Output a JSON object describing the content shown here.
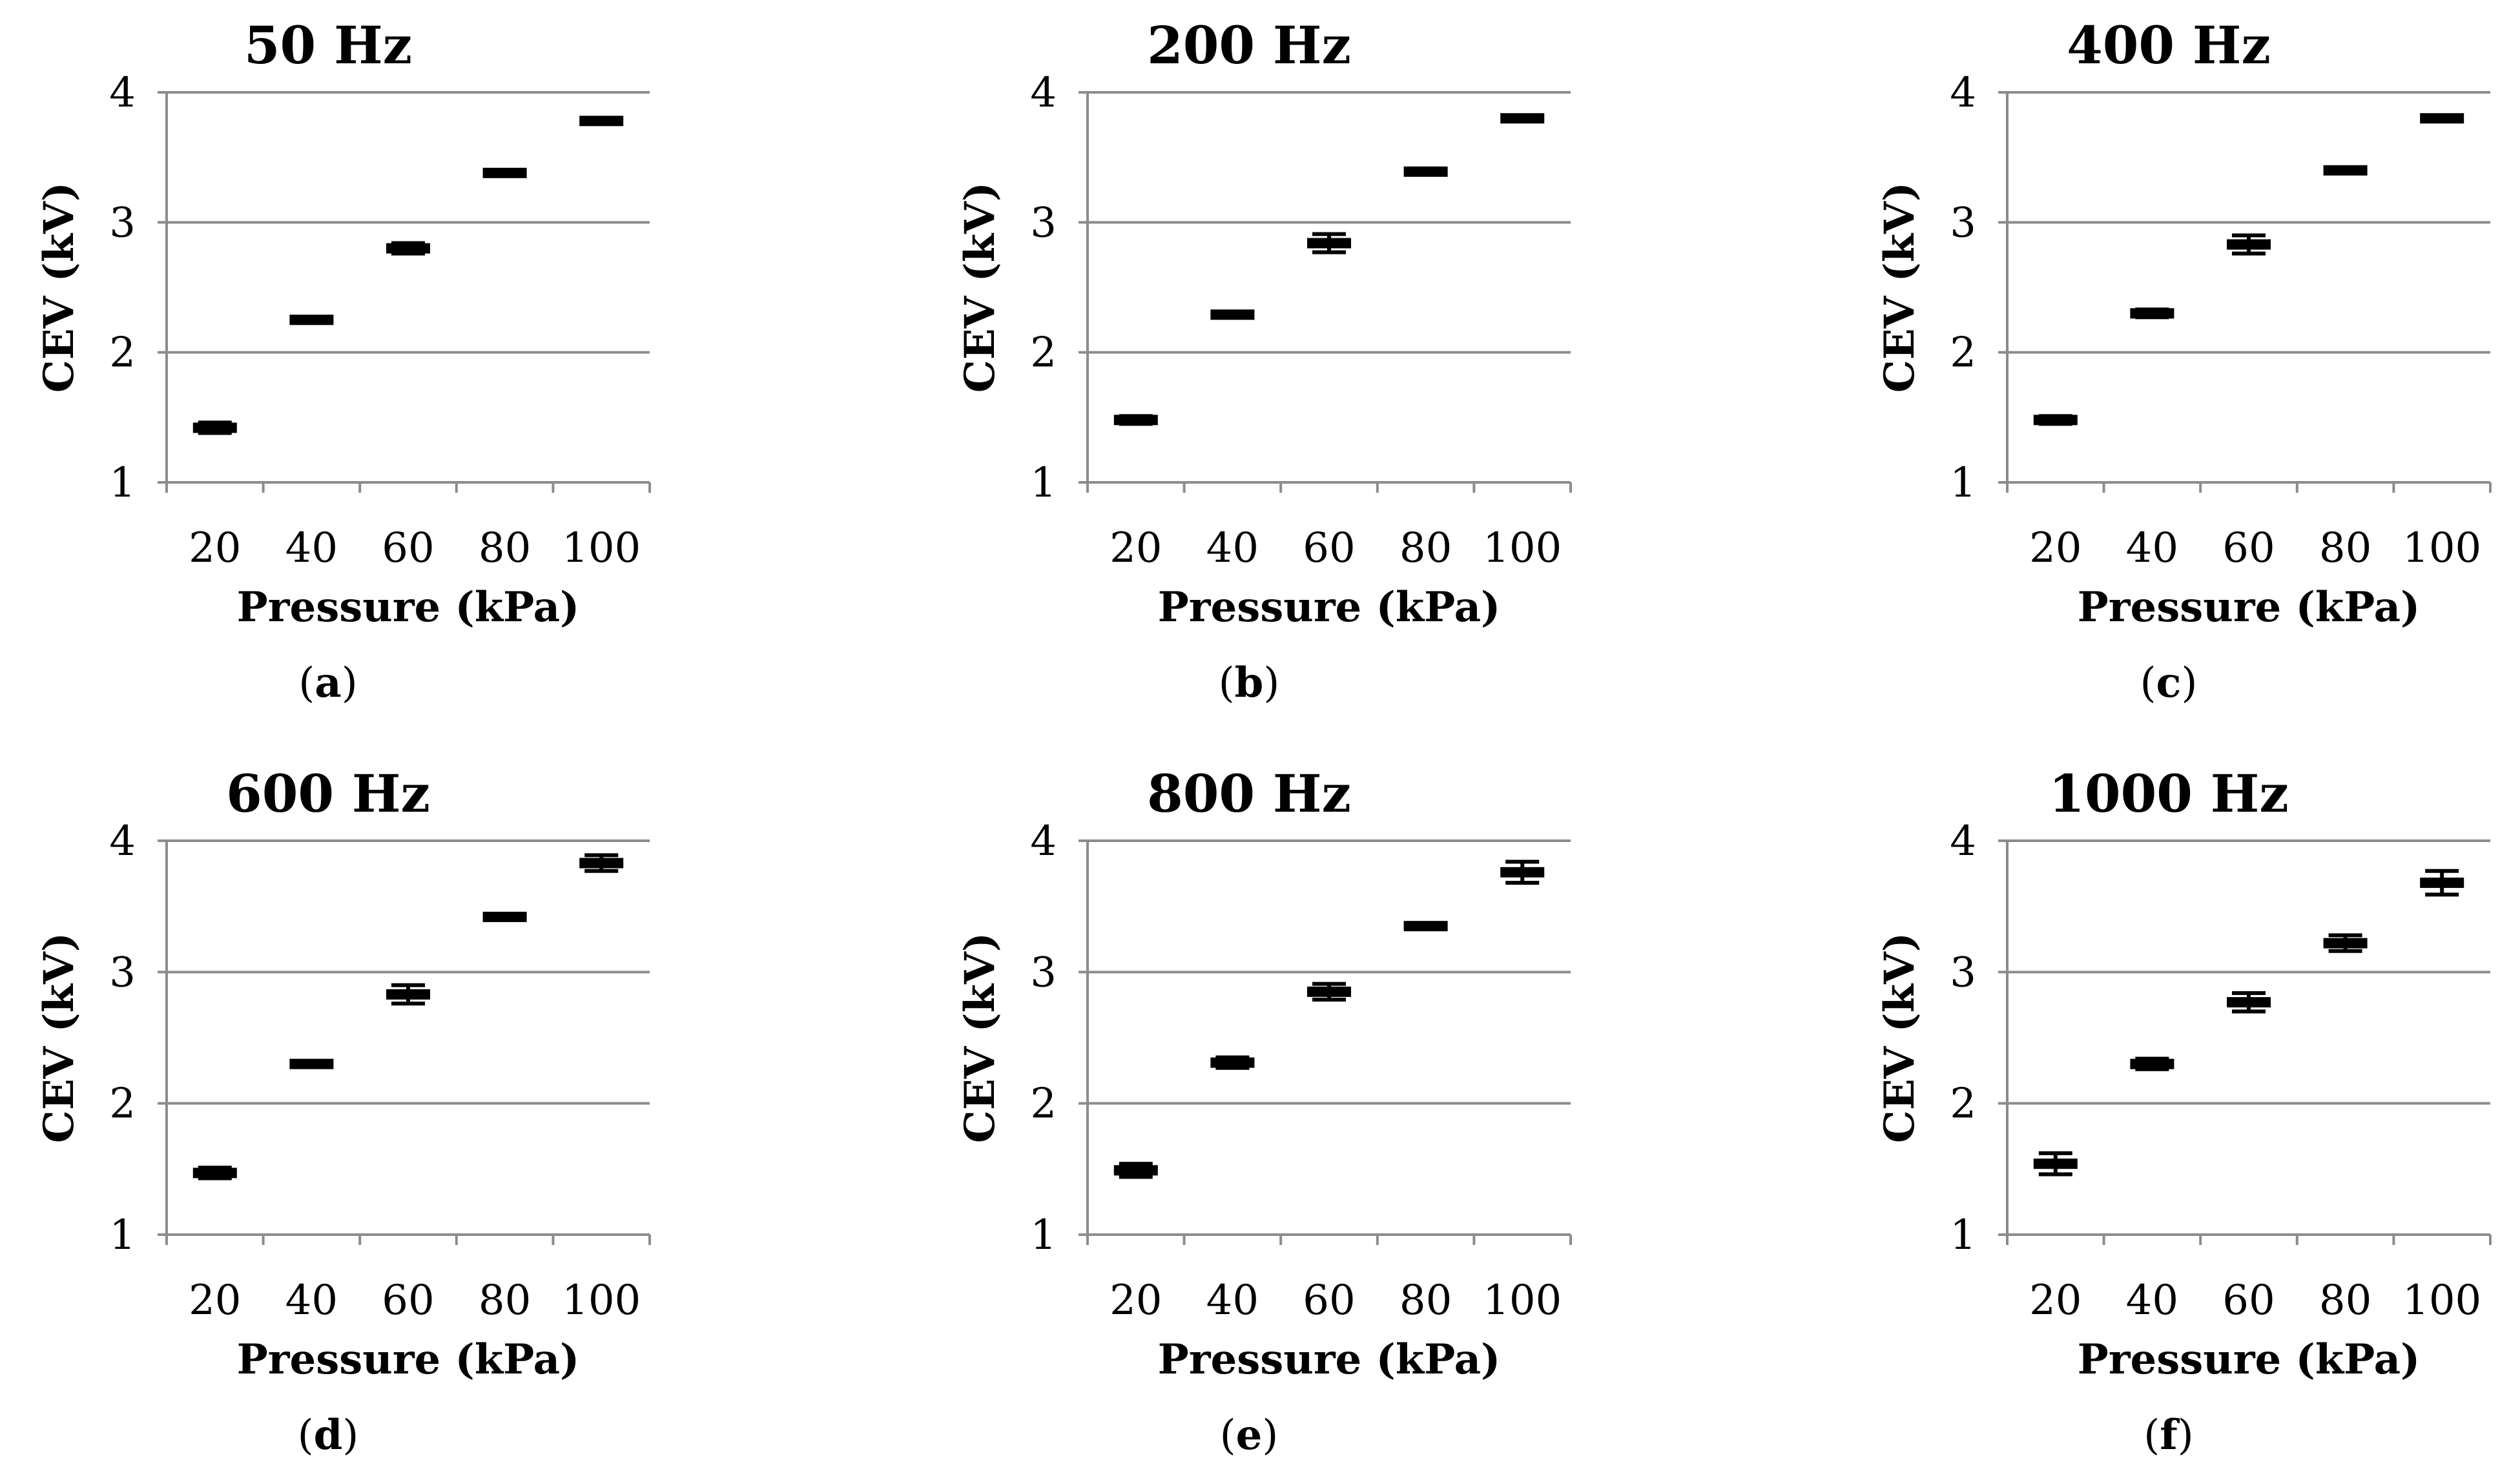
{
  "chart_data": [
    {
      "type": "scatter",
      "panel": "a",
      "title": "50 Hz",
      "xlabel": "Pressure (kPa)",
      "ylabel": "CEV (kV)",
      "categories": [
        "20",
        "40",
        "60",
        "80",
        "100"
      ],
      "values": [
        1.42,
        2.25,
        2.8,
        3.38,
        3.78
      ],
      "errors": [
        0.04,
        0.01,
        0.04,
        0.01,
        0.01
      ],
      "ylim": [
        1,
        4
      ],
      "yticks": [
        "1",
        "2",
        "3",
        "4"
      ],
      "grid": true
    },
    {
      "type": "scatter",
      "panel": "b",
      "title": "200 Hz",
      "xlabel": "Pressure (kPa)",
      "ylabel": "CEV (kV)",
      "categories": [
        "20",
        "40",
        "60",
        "80",
        "100"
      ],
      "values": [
        1.48,
        2.29,
        2.84,
        3.39,
        3.8
      ],
      "errors": [
        0.03,
        0.02,
        0.07,
        0.01,
        0.01
      ],
      "ylim": [
        1,
        4
      ],
      "yticks": [
        "1",
        "2",
        "3",
        "4"
      ],
      "grid": true
    },
    {
      "type": "scatter",
      "panel": "c",
      "title": "400 Hz",
      "xlabel": "Pressure (kPa)",
      "ylabel": "CEV (kV)",
      "categories": [
        "20",
        "40",
        "60",
        "80",
        "100"
      ],
      "values": [
        1.48,
        2.3,
        2.83,
        3.4,
        3.8
      ],
      "errors": [
        0.03,
        0.03,
        0.07,
        0.01,
        0.01
      ],
      "ylim": [
        1,
        4
      ],
      "yticks": [
        "1",
        "2",
        "3",
        "4"
      ],
      "grid": true
    },
    {
      "type": "scatter",
      "panel": "d",
      "title": "600 Hz",
      "xlabel": "Pressure (kPa)",
      "ylabel": "CEV (kV)",
      "categories": [
        "20",
        "40",
        "60",
        "80",
        "100"
      ],
      "values": [
        1.47,
        2.3,
        2.83,
        3.42,
        3.83
      ],
      "errors": [
        0.04,
        0.02,
        0.07,
        0.01,
        0.06
      ],
      "ylim": [
        1,
        4
      ],
      "yticks": [
        "1",
        "2",
        "3",
        "4"
      ],
      "grid": true
    },
    {
      "type": "scatter",
      "panel": "e",
      "title": "800 Hz",
      "xlabel": "Pressure (kPa)",
      "ylabel": "CEV (kV)",
      "categories": [
        "20",
        "40",
        "60",
        "80",
        "100"
      ],
      "values": [
        1.49,
        2.31,
        2.85,
        3.35,
        3.76
      ],
      "errors": [
        0.05,
        0.04,
        0.06,
        0.01,
        0.08
      ],
      "ylim": [
        1,
        4
      ],
      "yticks": [
        "1",
        "2",
        "3",
        "4"
      ],
      "grid": true
    },
    {
      "type": "scatter",
      "panel": "f",
      "title": "1000 Hz",
      "xlabel": "Pressure (kPa)",
      "ylabel": "CEV (kV)",
      "categories": [
        "20",
        "40",
        "60",
        "80",
        "100"
      ],
      "values": [
        1.54,
        2.3,
        2.77,
        3.22,
        3.68
      ],
      "errors": [
        0.08,
        0.04,
        0.07,
        0.06,
        0.09
      ],
      "ylim": [
        1,
        4
      ],
      "yticks": [
        "1",
        "2",
        "3",
        "4"
      ],
      "grid": true
    }
  ]
}
